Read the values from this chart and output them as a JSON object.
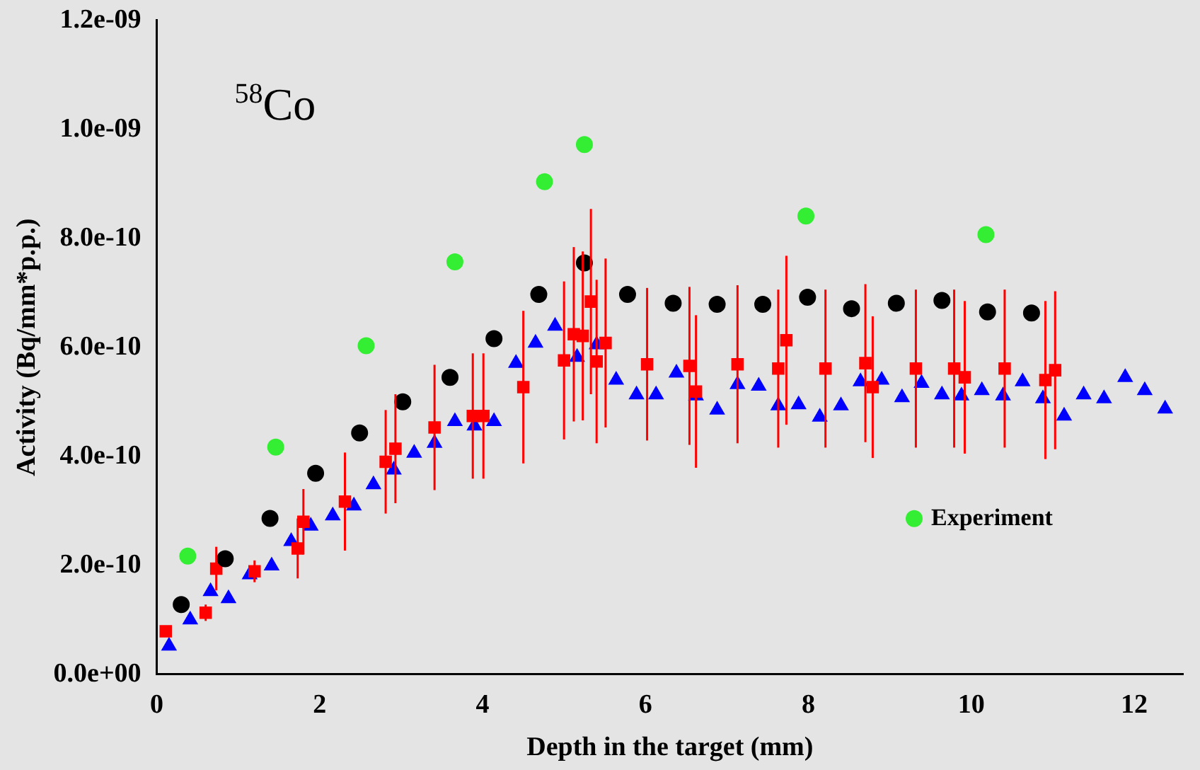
{
  "chart_data": {
    "type": "scatter",
    "xlabel": "Depth in the target (mm)",
    "ylabel": "Activity (Bq/mm*p.p.)",
    "annotations": [
      "$^{58}$Co"
    ],
    "legend": "bottom right",
    "grid": false,
    "xlim": [
      0,
      12.6
    ],
    "xticks": [
      0,
      2,
      4,
      6,
      8,
      10,
      12
    ],
    "ylim": [
      0,
      1.2e-09
    ],
    "yticks": [
      {
        "value": 0,
        "label": "0.0e+00"
      },
      {
        "value": 2e-10,
        "label": "2.0e-10"
      },
      {
        "value": 4e-10,
        "label": "4.0e-10"
      },
      {
        "value": 6e-10,
        "label": "6.0e-10"
      },
      {
        "value": 8e-10,
        "label": "8.0e-10"
      },
      {
        "value": 1e-09,
        "label": "1.0e-09"
      },
      {
        "value": 1.2e-09,
        "label": "1.2e-09"
      }
    ],
    "series": [
      {
        "name": "Experiment",
        "color": "#33ee33",
        "marker": "circle",
        "x": [
          0.38,
          1.46,
          2.57,
          3.66,
          4.76,
          5.25,
          7.97,
          10.18
        ],
        "values": [
          2.17e-10,
          4.17e-10,
          6.03e-10,
          7.57e-10,
          9.04e-10,
          9.72e-10,
          8.41e-10,
          8.07e-10
        ]
      },
      {
        "color": "#0000ff",
        "marker": "triangle",
        "x": [
          0.15,
          0.41,
          0.66,
          0.88,
          1.14,
          1.41,
          1.65,
          1.89,
          2.16,
          2.42,
          2.66,
          2.91,
          3.16,
          3.41,
          3.66,
          3.9,
          4.14,
          4.41,
          4.65,
          4.89,
          5.16,
          5.4,
          5.64,
          5.89,
          6.13,
          6.38,
          6.62,
          6.88,
          7.13,
          7.39,
          7.63,
          7.88,
          8.14,
          8.4,
          8.64,
          8.9,
          9.15,
          9.39,
          9.64,
          9.88,
          10.13,
          10.39,
          10.63,
          10.88,
          11.14,
          11.38,
          11.63,
          11.89,
          12.13,
          12.38
        ],
        "values": [
          5.2e-11,
          1e-10,
          1.52e-10,
          1.39e-10,
          1.83e-10,
          1.99e-10,
          2.44e-10,
          2.72e-10,
          2.91e-10,
          3.09e-10,
          3.48e-10,
          3.75e-10,
          4.06e-10,
          4.24e-10,
          4.64e-10,
          4.56e-10,
          4.64e-10,
          5.71e-10,
          6.08e-10,
          6.39e-10,
          5.82e-10,
          6.05e-10,
          5.4e-10,
          5.13e-10,
          5.13e-10,
          5.53e-10,
          5.11e-10,
          4.85e-10,
          5.32e-10,
          5.29e-10,
          4.93e-10,
          4.95e-10,
          4.72e-10,
          4.93e-10,
          5.37e-10,
          5.4e-10,
          5.08e-10,
          5.34e-10,
          5.13e-10,
          5.11e-10,
          5.21e-10,
          5.11e-10,
          5.37e-10,
          5.06e-10,
          4.74e-10,
          5.13e-10,
          5.06e-10,
          5.45e-10,
          5.21e-10,
          4.87e-10
        ]
      },
      {
        "color": "#ff0000",
        "marker": "square",
        "x": [
          0.11,
          0.6,
          0.73,
          1.2,
          1.73,
          1.8,
          2.31,
          2.81,
          2.93,
          3.41,
          3.88,
          4.01,
          4.5,
          5.0,
          5.12,
          5.23,
          5.33,
          5.4,
          5.51,
          6.02,
          6.54,
          6.62,
          7.13,
          7.63,
          7.73,
          8.21,
          8.7,
          8.79,
          9.32,
          9.79,
          9.92,
          10.41,
          10.91,
          11.03
        ],
        "values": [
          7.9e-11,
          1.13e-10,
          1.94e-10,
          1.89e-10,
          2.31e-10,
          2.8e-10,
          3.17e-10,
          3.9e-10,
          4.14e-10,
          4.53e-10,
          4.74e-10,
          4.74e-10,
          5.27e-10,
          5.76e-10,
          6.24e-10,
          6.21e-10,
          6.84e-10,
          5.74e-10,
          6.08e-10,
          5.69e-10,
          5.66e-10,
          5.19e-10,
          5.69e-10,
          5.61e-10,
          6.13e-10,
          5.61e-10,
          5.71e-10,
          5.27e-10,
          5.61e-10,
          5.61e-10,
          5.45e-10,
          5.61e-10,
          5.4e-10,
          5.58e-10
        ],
        "errors": [
          1e-11,
          1.5e-11,
          4e-11,
          2e-11,
          5.5e-11,
          6e-11,
          9e-11,
          9.5e-11,
          1e-10,
          1.15e-10,
          1.15e-10,
          1.15e-10,
          1.4e-10,
          1.45e-10,
          1.6e-10,
          1.55e-10,
          1.7e-10,
          1.5e-10,
          1.55e-10,
          1.4e-10,
          1.45e-10,
          1.4e-10,
          1.45e-10,
          1.45e-10,
          1.55e-10,
          1.45e-10,
          1.45e-10,
          1.3e-10,
          1.45e-10,
          1.45e-10,
          1.4e-10,
          1.45e-10,
          1.45e-10,
          1.45e-10
        ]
      },
      {
        "color": "#000000",
        "marker": "circle",
        "x": [
          0.3,
          0.84,
          1.39,
          1.95,
          2.49,
          3.02,
          3.6,
          4.14,
          4.69,
          5.25,
          5.78,
          6.34,
          6.88,
          7.44,
          7.99,
          8.53,
          9.08,
          9.64,
          10.2,
          10.74
        ],
        "values": [
          1.28e-10,
          2.12e-10,
          2.86e-10,
          3.69e-10,
          4.43e-10,
          5e-10,
          5.45e-10,
          6.16e-10,
          6.97e-10,
          7.55e-10,
          6.97e-10,
          6.81e-10,
          6.79e-10,
          6.79e-10,
          6.92e-10,
          6.71e-10,
          6.81e-10,
          6.86e-10,
          6.65e-10,
          6.63e-10
        ]
      }
    ]
  }
}
